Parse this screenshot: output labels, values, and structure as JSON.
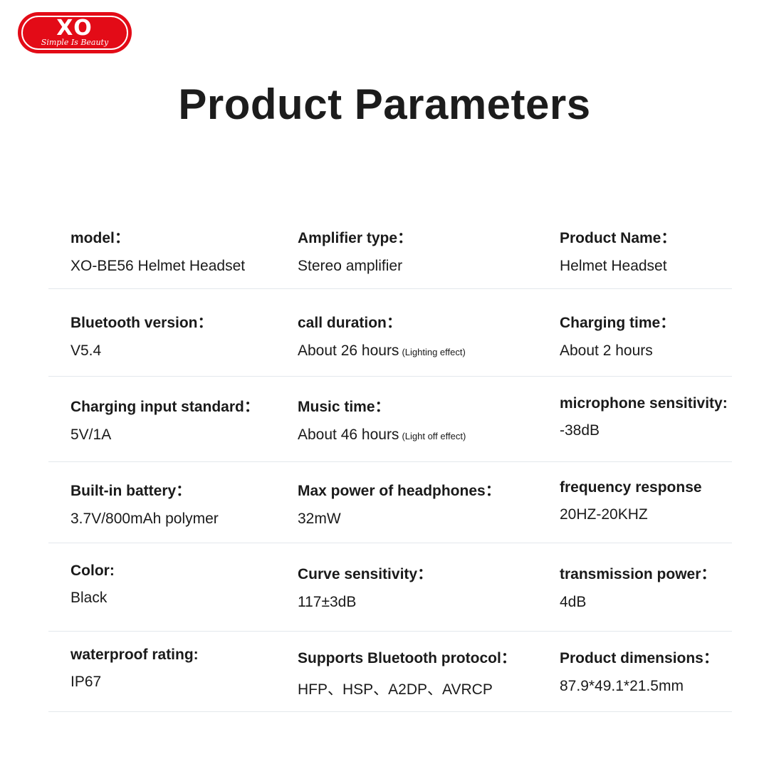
{
  "logo": {
    "mark": "XO",
    "tagline": "Simple Is Beauty",
    "color": "#e30b17"
  },
  "title": "Product Parameters",
  "rows": [
    [
      {
        "label": "model：",
        "value": "XO-BE56 Helmet Headset",
        "note": ""
      },
      {
        "label": "Amplifier type：",
        "value": "Stereo amplifier",
        "note": ""
      },
      {
        "label": "Product Name：",
        "value": "Helmet Headset",
        "note": ""
      }
    ],
    [
      {
        "label": "Bluetooth version：",
        "value": "V5.4",
        "note": ""
      },
      {
        "label": "call duration：",
        "value": "About 26 hours",
        "note": "(Lighting effect)"
      },
      {
        "label": "Charging time：",
        "value": "About 2 hours",
        "note": ""
      }
    ],
    [
      {
        "label": "Charging input standard：",
        "value": "5V/1A",
        "note": ""
      },
      {
        "label": "Music time：",
        "value": "About 46 hours",
        "note": "(Light off effect)"
      },
      {
        "label": "microphone sensitivity:",
        "value": "-38dB",
        "note": ""
      }
    ],
    [
      {
        "label": "Built-in battery：",
        "value": "3.7V/800mAh  polymer",
        "note": ""
      },
      {
        "label": "Max power of headphones：",
        "value": "32mW",
        "note": ""
      },
      {
        "label": "frequency response",
        "value": "20HZ-20KHZ",
        "note": ""
      }
    ],
    [
      {
        "label": "Color:",
        "value": "Black",
        "note": ""
      },
      {
        "label": "Curve sensitivity：",
        "value": "117±3dB",
        "note": ""
      },
      {
        "label": "transmission power：",
        "value": "4dB",
        "note": ""
      }
    ],
    [
      {
        "label": "waterproof rating:",
        "value": "IP67",
        "note": ""
      },
      {
        "label": "Supports Bluetooth protocol：",
        "value": "HFP、HSP、A2DP、AVRCP",
        "note": ""
      },
      {
        "label": "Product dimensions：",
        "value": "87.9*49.1*21.5mm",
        "note": ""
      }
    ]
  ]
}
